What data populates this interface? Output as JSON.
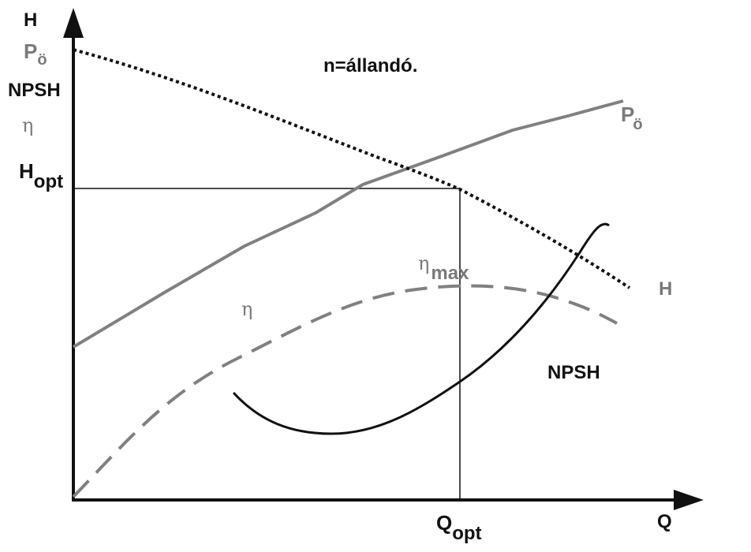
{
  "axes": {
    "y_labels": {
      "H": "H",
      "P": "P",
      "P_sub": "ö",
      "NPSH": "NPSH",
      "eta": "η"
    },
    "x_label": "Q",
    "H_opt": {
      "main": "H",
      "sub": "opt"
    },
    "Q_opt": {
      "main": "Q",
      "sub": "opt"
    }
  },
  "condition": "n=állandó.",
  "curve_labels": {
    "P": {
      "main": "P",
      "sub": "ö"
    },
    "H": "H",
    "eta": "η",
    "eta_max": {
      "main": "η",
      "sub": "max"
    },
    "NPSH": "NPSH"
  },
  "colors": {
    "axis": "#111111",
    "head": "#111111",
    "power": "#808080",
    "efficiency": "#808080",
    "npsh": "#111111",
    "gray_text": "#7a7a7a"
  }
}
